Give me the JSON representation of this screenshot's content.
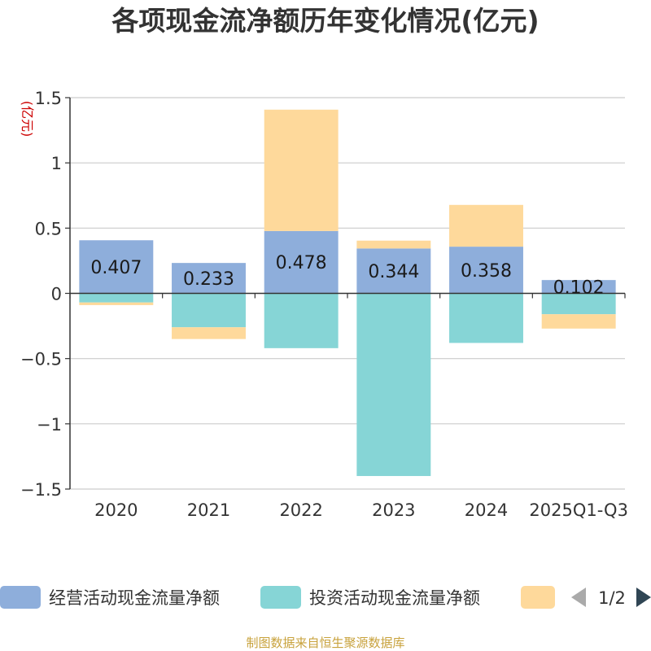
{
  "chart_data": {
    "type": "bar",
    "stacked": true,
    "title": "各项现金流净额历年变化情况(亿元)",
    "ylabel": "(亿元)",
    "xlabel": "",
    "ylim": [
      -1.5,
      1.5
    ],
    "yticks": [
      1.5,
      1,
      0.5,
      0,
      -0.5,
      -1,
      -1.5
    ],
    "ytick_labels": [
      "1.5",
      "1",
      "0.5",
      "0",
      "−0.5",
      "−1",
      "−1.5"
    ],
    "categories": [
      "2020",
      "2021",
      "2022",
      "2023",
      "2024",
      "2025Q1-Q3"
    ],
    "grid": true,
    "series": [
      {
        "name": "经营活动现金流量净额",
        "color": "#8eaedb",
        "values": [
          0.407,
          0.233,
          0.478,
          0.344,
          0.358,
          0.102
        ],
        "labels": [
          "0.407",
          "0.233",
          "0.478",
          "0.344",
          "0.358",
          "0.102"
        ]
      },
      {
        "name": "投资活动现金流量净额",
        "color": "#86d5d6",
        "values": [
          -0.07,
          -0.26,
          -0.42,
          -1.4,
          -0.38,
          -0.16
        ]
      },
      {
        "name": "",
        "color": "#fed99b",
        "values": [
          -0.02,
          -0.09,
          0.93,
          0.06,
          0.32,
          -0.11
        ]
      }
    ]
  },
  "legend": {
    "pager": "1/2",
    "prev_icon": "triangle-left-icon",
    "next_icon": "triangle-right-icon"
  },
  "source": "制图数据来自恒生聚源数据库",
  "colors": {
    "title": "#333333",
    "unit": "#cc0000",
    "grid": "#cccccc",
    "axis": "#333333",
    "source": "#c8a23c",
    "pager_disabled": "#aaaaaa",
    "pager_active": "#2f4554"
  }
}
